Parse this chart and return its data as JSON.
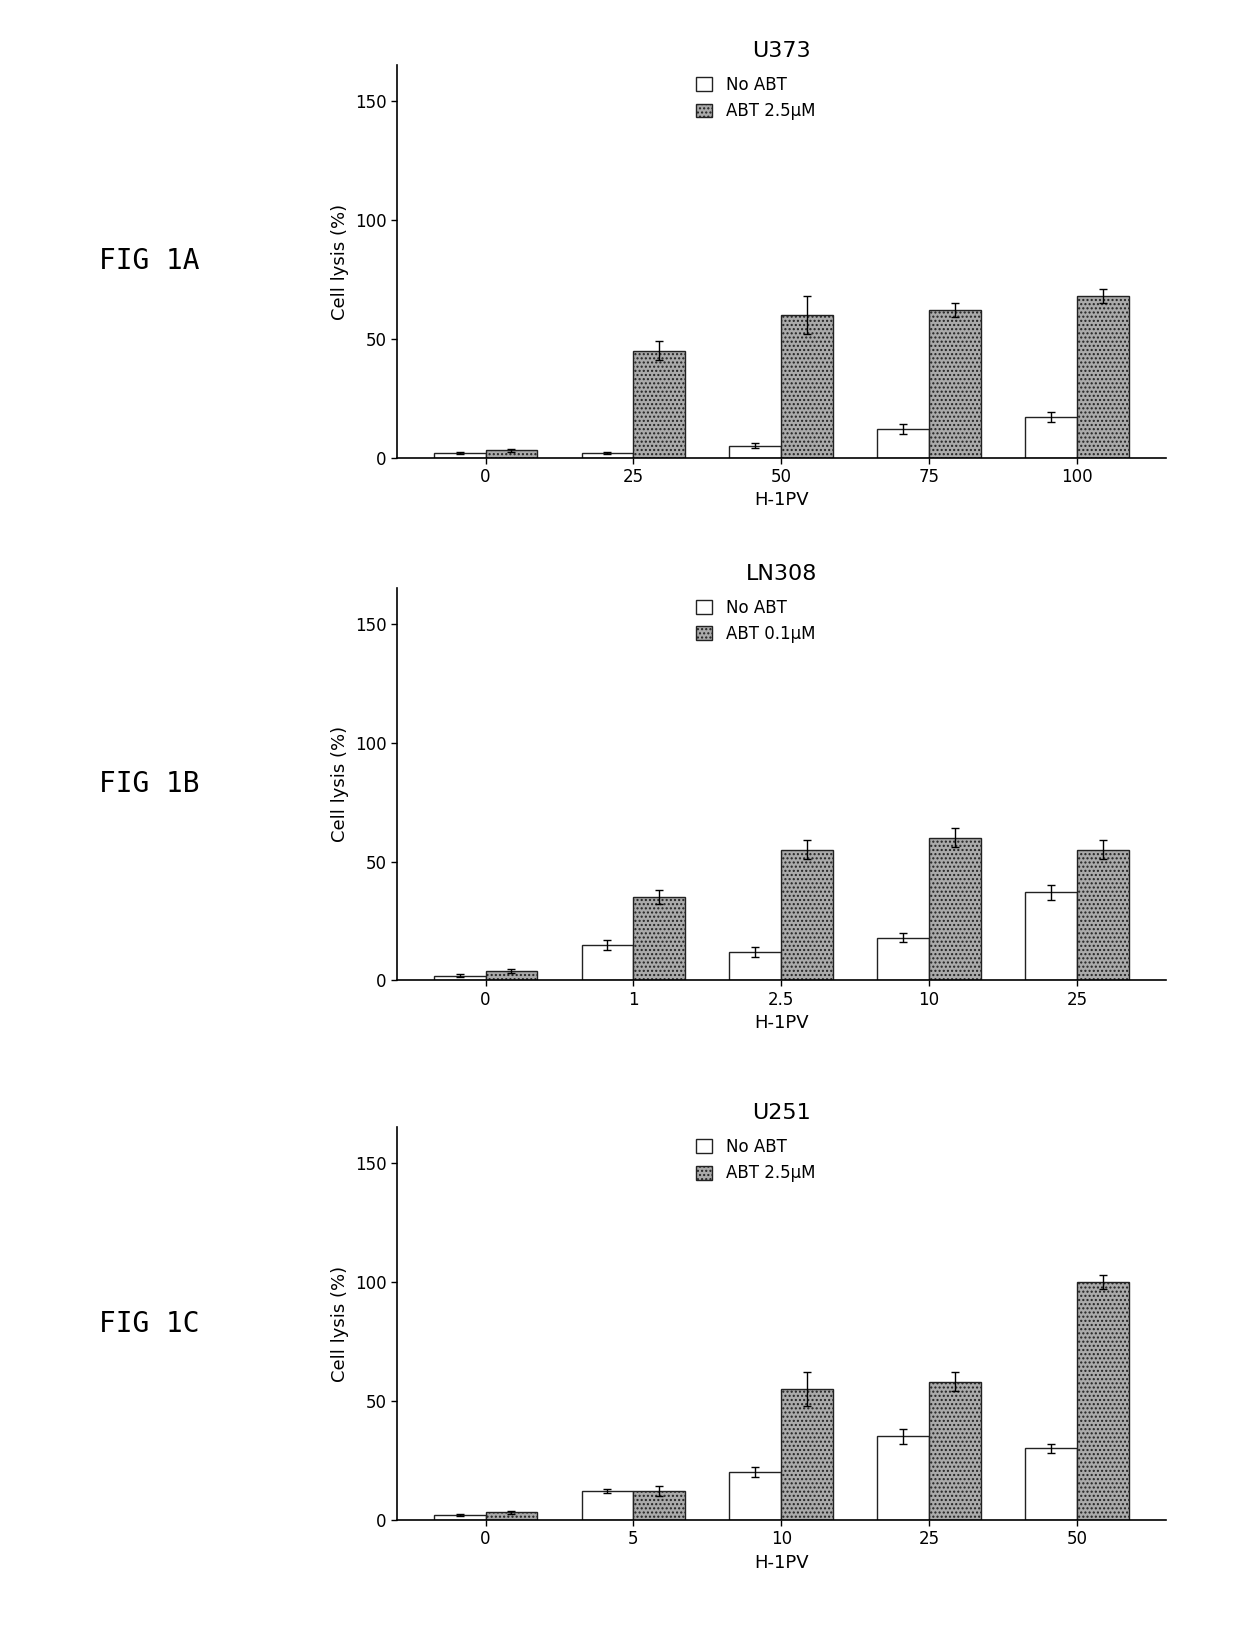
{
  "panels": [
    {
      "fig_label": "FIG 1A",
      "title": "U373",
      "xlabel": "H-1PV",
      "ylabel": "Cell lysis (%)",
      "legend_no_abt": "No ABT",
      "legend_abt": "ABT 2.5μM",
      "xtick_labels": [
        "0",
        "25",
        "50",
        "75",
        "100"
      ],
      "no_abt_values": [
        2,
        2,
        5,
        12,
        17
      ],
      "abt_values": [
        3,
        45,
        60,
        62,
        68
      ],
      "no_abt_err": [
        0.5,
        0.5,
        1,
        2,
        2
      ],
      "abt_err": [
        0.5,
        4,
        8,
        3,
        3
      ],
      "ylim": [
        0,
        165
      ],
      "yticks": [
        0,
        50,
        100,
        150
      ]
    },
    {
      "fig_label": "FIG 1B",
      "title": "LN308",
      "xlabel": "H-1PV",
      "ylabel": "Cell lysis (%)",
      "legend_no_abt": "No ABT",
      "legend_abt": "ABT 0.1μM",
      "xtick_labels": [
        "0",
        "1",
        "2.5",
        "10",
        "25"
      ],
      "no_abt_values": [
        2,
        15,
        12,
        18,
        37
      ],
      "abt_values": [
        4,
        35,
        55,
        60,
        55
      ],
      "no_abt_err": [
        0.5,
        2,
        2,
        2,
        3
      ],
      "abt_err": [
        1,
        3,
        4,
        4,
        4
      ],
      "ylim": [
        0,
        165
      ],
      "yticks": [
        0,
        50,
        100,
        150
      ]
    },
    {
      "fig_label": "FIG 1C",
      "title": "U251",
      "xlabel": "H-1PV",
      "ylabel": "Cell lysis (%)",
      "legend_no_abt": "No ABT",
      "legend_abt": "ABT 2.5μM",
      "xtick_labels": [
        "0",
        "5",
        "10",
        "25",
        "50"
      ],
      "no_abt_values": [
        2,
        12,
        20,
        35,
        30
      ],
      "abt_values": [
        3,
        12,
        55,
        58,
        100
      ],
      "no_abt_err": [
        0.5,
        1,
        2,
        3,
        2
      ],
      "abt_err": [
        0.5,
        2,
        7,
        4,
        3
      ],
      "ylim": [
        0,
        165
      ],
      "yticks": [
        0,
        50,
        100,
        150
      ]
    }
  ],
  "bar_width": 0.35,
  "no_abt_color": "white",
  "no_abt_edgecolor": "#222222",
  "abt_color": "#aaaaaa",
  "abt_edgecolor": "#222222",
  "abt_hatch": "....",
  "background_color": "white",
  "fig_label_fontsize": 20,
  "title_fontsize": 16,
  "axis_label_fontsize": 13,
  "tick_fontsize": 12,
  "legend_fontsize": 12
}
